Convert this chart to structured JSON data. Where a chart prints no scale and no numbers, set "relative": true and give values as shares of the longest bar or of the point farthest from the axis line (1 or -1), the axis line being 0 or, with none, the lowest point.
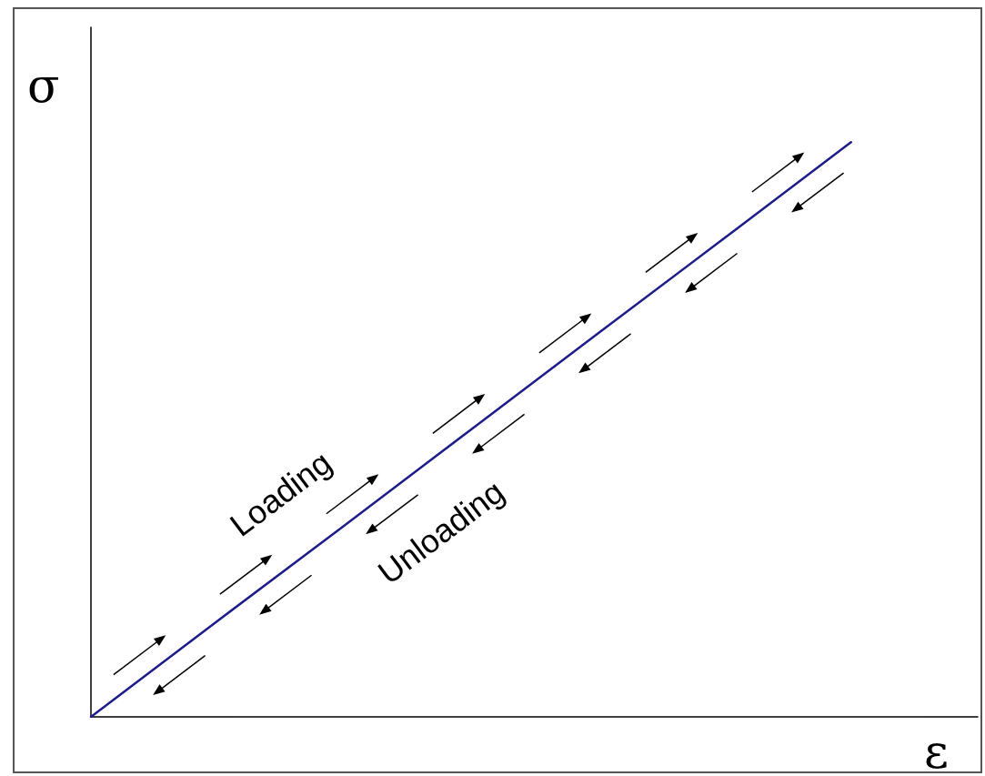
{
  "chart_data": {
    "type": "line",
    "relative": true,
    "xlabel": "ε",
    "ylabel": "σ",
    "categories": [
      null,
      null,
      null,
      null,
      null,
      null,
      null,
      null
    ],
    "series": [
      {
        "color": "#1c1c8a",
        "values": [
          0,
          0.167,
          0.333,
          0.5,
          0.667,
          0.833,
          1,
          null
        ]
      }
    ],
    "annotations": [
      "Loading",
      "Unloading"
    ],
    "grid": false,
    "marker": "none",
    "line_style": "solid"
  }
}
